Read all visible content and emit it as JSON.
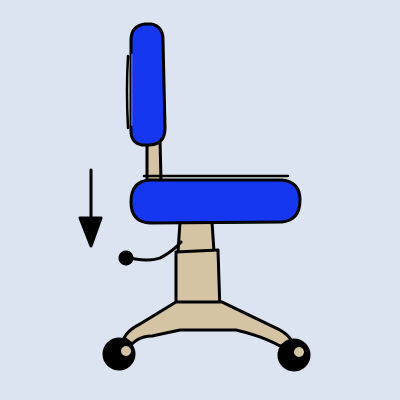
{
  "colors": {
    "background": "#DDE4F1",
    "chair_blue": "#1637F0",
    "chair_blue_light": "#3452F4",
    "frame_tan": "#D4C4A4",
    "outline": "#000000"
  },
  "icons": {
    "arrow": "down-arrow-icon",
    "lever": "adjustment-lever-icon"
  }
}
